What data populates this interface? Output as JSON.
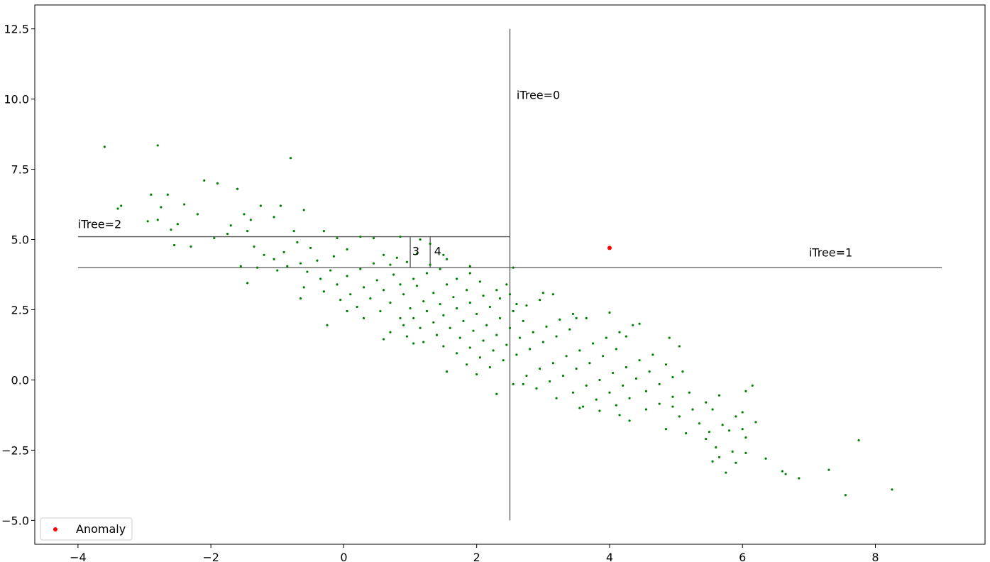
{
  "chart_data": {
    "type": "scatter",
    "title": "",
    "xlabel": "",
    "ylabel": "",
    "xlim": [
      -4.65,
      9.65
    ],
    "ylim": [
      -5.85,
      13.35
    ],
    "xticks": [
      -4,
      -2,
      0,
      2,
      4,
      6,
      8
    ],
    "xtick_labels": [
      "−4",
      "−2",
      "0",
      "2",
      "4",
      "6",
      "8"
    ],
    "yticks": [
      -5.0,
      -2.5,
      0.0,
      2.5,
      5.0,
      7.5,
      10.0,
      12.5
    ],
    "ytick_labels": [
      "−5.0",
      "−2.5",
      "0.0",
      "2.5",
      "5.0",
      "7.5",
      "10.0",
      "12.5"
    ],
    "grid": false,
    "legend": {
      "position": "lower-left",
      "entries": [
        "Anomaly"
      ]
    },
    "series": [
      {
        "color": "#008000",
        "marker_size": "small",
        "description": "normal points (approx. correlated cloud)",
        "points": [
          [
            -3.6,
            8.3
          ],
          [
            -2.8,
            8.35
          ],
          [
            -0.8,
            7.9
          ],
          [
            -3.4,
            6.1
          ],
          [
            -3.35,
            6.2
          ],
          [
            -2.1,
            7.1
          ],
          [
            -1.9,
            7.0
          ],
          [
            -1.6,
            6.8
          ],
          [
            -2.9,
            6.6
          ],
          [
            -2.65,
            6.6
          ],
          [
            -2.4,
            6.25
          ],
          [
            -2.2,
            5.9
          ],
          [
            -2.75,
            6.15
          ],
          [
            -2.8,
            5.7
          ],
          [
            -2.95,
            5.65
          ],
          [
            -2.5,
            5.55
          ],
          [
            -2.6,
            5.35
          ],
          [
            -2.55,
            4.8
          ],
          [
            -2.3,
            4.75
          ],
          [
            -1.95,
            5.05
          ],
          [
            -1.5,
            5.9
          ],
          [
            -1.4,
            5.7
          ],
          [
            -1.25,
            6.2
          ],
          [
            -1.05,
            5.8
          ],
          [
            -0.95,
            6.2
          ],
          [
            -0.6,
            6.05
          ],
          [
            -0.75,
            5.3
          ],
          [
            -1.45,
            5.3
          ],
          [
            -1.7,
            5.5
          ],
          [
            -1.75,
            5.2
          ],
          [
            -1.35,
            4.75
          ],
          [
            -1.2,
            4.45
          ],
          [
            -1.05,
            4.3
          ],
          [
            -0.9,
            4.55
          ],
          [
            -0.7,
            4.9
          ],
          [
            -0.5,
            4.7
          ],
          [
            -0.3,
            5.3
          ],
          [
            -0.1,
            5.05
          ],
          [
            0.05,
            4.65
          ],
          [
            -0.15,
            4.4
          ],
          [
            -0.4,
            4.25
          ],
          [
            -0.65,
            4.15
          ],
          [
            -0.85,
            4.05
          ],
          [
            -1.0,
            3.9
          ],
          [
            -1.3,
            4.0
          ],
          [
            -1.45,
            3.45
          ],
          [
            -1.55,
            4.05
          ],
          [
            -0.55,
            3.85
          ],
          [
            -0.2,
            3.9
          ],
          [
            0.05,
            3.7
          ],
          [
            0.25,
            3.95
          ],
          [
            0.45,
            4.15
          ],
          [
            0.6,
            4.45
          ],
          [
            0.8,
            4.35
          ],
          [
            0.95,
            4.2
          ],
          [
            0.75,
            3.75
          ],
          [
            0.5,
            3.55
          ],
          [
            0.3,
            3.3
          ],
          [
            0.1,
            3.05
          ],
          [
            -0.1,
            3.4
          ],
          [
            -0.35,
            3.6
          ],
          [
            -0.6,
            3.3
          ],
          [
            -0.3,
            3.15
          ],
          [
            -0.05,
            2.85
          ],
          [
            0.2,
            2.6
          ],
          [
            0.4,
            2.9
          ],
          [
            0.6,
            3.2
          ],
          [
            0.85,
            3.4
          ],
          [
            1.05,
            3.6
          ],
          [
            1.25,
            3.8
          ],
          [
            1.45,
            3.95
          ],
          [
            1.55,
            4.3
          ],
          [
            1.3,
            4.1
          ],
          [
            1.1,
            3.35
          ],
          [
            0.9,
            3.05
          ],
          [
            0.7,
            2.75
          ],
          [
            0.55,
            2.45
          ],
          [
            0.3,
            2.2
          ],
          [
            0.05,
            2.45
          ],
          [
            -0.25,
            1.95
          ],
          [
            -0.65,
            2.9
          ],
          [
            0.85,
            2.2
          ],
          [
            1.0,
            2.55
          ],
          [
            1.2,
            2.8
          ],
          [
            1.35,
            3.1
          ],
          [
            1.55,
            3.4
          ],
          [
            1.7,
            3.6
          ],
          [
            1.9,
            3.8
          ],
          [
            2.05,
            3.5
          ],
          [
            1.85,
            3.2
          ],
          [
            1.65,
            2.95
          ],
          [
            1.45,
            2.7
          ],
          [
            1.25,
            2.45
          ],
          [
            1.05,
            2.2
          ],
          [
            0.9,
            1.95
          ],
          [
            0.7,
            1.7
          ],
          [
            0.6,
            1.45
          ],
          [
            0.95,
            1.55
          ],
          [
            1.15,
            1.85
          ],
          [
            1.35,
            2.05
          ],
          [
            1.5,
            2.3
          ],
          [
            1.7,
            2.55
          ],
          [
            1.9,
            2.75
          ],
          [
            2.1,
            3.0
          ],
          [
            2.3,
            3.2
          ],
          [
            2.45,
            3.4
          ],
          [
            2.2,
            2.6
          ],
          [
            2.0,
            2.35
          ],
          [
            1.8,
            2.1
          ],
          [
            1.6,
            1.85
          ],
          [
            1.4,
            1.6
          ],
          [
            1.2,
            1.35
          ],
          [
            1.05,
            1.3
          ],
          [
            1.5,
            1.2
          ],
          [
            1.75,
            1.5
          ],
          [
            1.95,
            1.75
          ],
          [
            2.15,
            1.95
          ],
          [
            2.35,
            2.2
          ],
          [
            2.55,
            2.45
          ],
          [
            2.75,
            2.65
          ],
          [
            2.95,
            2.85
          ],
          [
            3.15,
            3.05
          ],
          [
            2.7,
            2.1
          ],
          [
            2.5,
            1.85
          ],
          [
            2.3,
            1.6
          ],
          [
            2.1,
            1.4
          ],
          [
            1.9,
            1.15
          ],
          [
            1.7,
            0.95
          ],
          [
            1.55,
            0.3
          ],
          [
            1.85,
            0.55
          ],
          [
            2.05,
            0.8
          ],
          [
            2.25,
            1.05
          ],
          [
            2.45,
            1.25
          ],
          [
            2.65,
            1.5
          ],
          [
            2.85,
            1.7
          ],
          [
            3.05,
            1.9
          ],
          [
            3.25,
            2.15
          ],
          [
            3.45,
            2.35
          ],
          [
            3.65,
            2.2
          ],
          [
            3.4,
            1.8
          ],
          [
            3.2,
            1.55
          ],
          [
            3.0,
            1.35
          ],
          [
            2.8,
            1.1
          ],
          [
            2.6,
            0.9
          ],
          [
            2.4,
            0.7
          ],
          [
            2.2,
            0.45
          ],
          [
            2.0,
            0.2
          ],
          [
            2.3,
            -0.5
          ],
          [
            2.55,
            -0.15
          ],
          [
            2.75,
            0.15
          ],
          [
            2.95,
            0.4
          ],
          [
            3.15,
            0.6
          ],
          [
            3.35,
            0.85
          ],
          [
            3.55,
            1.05
          ],
          [
            3.75,
            1.3
          ],
          [
            3.95,
            1.5
          ],
          [
            4.15,
            1.7
          ],
          [
            4.35,
            1.95
          ],
          [
            4.1,
            1.1
          ],
          [
            3.9,
            0.85
          ],
          [
            3.7,
            0.6
          ],
          [
            3.5,
            0.4
          ],
          [
            3.3,
            0.15
          ],
          [
            3.1,
            -0.05
          ],
          [
            2.9,
            -0.3
          ],
          [
            2.7,
            -0.15
          ],
          [
            3.2,
            -0.65
          ],
          [
            3.45,
            -0.45
          ],
          [
            3.65,
            -0.2
          ],
          [
            3.85,
            0.0
          ],
          [
            4.05,
            0.25
          ],
          [
            4.25,
            0.45
          ],
          [
            4.45,
            0.7
          ],
          [
            4.65,
            0.9
          ],
          [
            4.85,
            0.55
          ],
          [
            4.6,
            0.3
          ],
          [
            4.4,
            0.05
          ],
          [
            4.2,
            -0.2
          ],
          [
            4.0,
            -0.45
          ],
          [
            3.8,
            -0.7
          ],
          [
            3.6,
            -0.95
          ],
          [
            3.55,
            -1.0
          ],
          [
            3.85,
            -1.1
          ],
          [
            4.1,
            -0.9
          ],
          [
            4.3,
            -0.65
          ],
          [
            4.55,
            -0.4
          ],
          [
            4.75,
            -0.15
          ],
          [
            4.95,
            0.1
          ],
          [
            5.1,
            0.3
          ],
          [
            5.05,
            1.2
          ],
          [
            4.95,
            -0.6
          ],
          [
            4.75,
            -0.85
          ],
          [
            4.55,
            -1.05
          ],
          [
            4.3,
            -1.45
          ],
          [
            4.15,
            -1.25
          ],
          [
            4.85,
            -1.75
          ],
          [
            5.05,
            -1.3
          ],
          [
            5.25,
            -1.05
          ],
          [
            5.45,
            -0.8
          ],
          [
            5.65,
            -0.55
          ],
          [
            5.35,
            -1.55
          ],
          [
            5.5,
            -1.85
          ],
          [
            5.7,
            -1.6
          ],
          [
            5.9,
            -1.3
          ],
          [
            6.0,
            -1.15
          ],
          [
            6.05,
            -0.4
          ],
          [
            6.15,
            -0.2
          ],
          [
            5.15,
            -1.9
          ],
          [
            5.45,
            -2.1
          ],
          [
            5.8,
            -1.8
          ],
          [
            6.0,
            -1.75
          ],
          [
            6.05,
            -2.05
          ],
          [
            6.2,
            -1.5
          ],
          [
            5.6,
            -2.4
          ],
          [
            5.65,
            -2.75
          ],
          [
            5.75,
            -3.3
          ],
          [
            5.85,
            -2.55
          ],
          [
            5.55,
            -2.9
          ],
          [
            5.9,
            -2.95
          ],
          [
            6.05,
            -2.6
          ],
          [
            6.35,
            -2.8
          ],
          [
            6.6,
            -3.25
          ],
          [
            6.65,
            -3.35
          ],
          [
            6.85,
            -3.5
          ],
          [
            7.3,
            -3.2
          ],
          [
            7.55,
            -4.1
          ],
          [
            7.75,
            -2.15
          ],
          [
            8.25,
            -3.9
          ],
          [
            3.5,
            2.2
          ],
          [
            4.0,
            2.4
          ],
          [
            4.45,
            2.0
          ],
          [
            4.9,
            1.5
          ],
          [
            4.25,
            1.55
          ],
          [
            4.95,
            -0.95
          ],
          [
            5.2,
            -0.45
          ],
          [
            5.55,
            -1.05
          ],
          [
            3.0,
            3.1
          ],
          [
            2.6,
            2.7
          ],
          [
            2.35,
            2.9
          ],
          [
            2.5,
            3.05
          ],
          [
            1.9,
            4.05
          ],
          [
            2.55,
            4.0
          ],
          [
            0.25,
            5.1
          ],
          [
            0.45,
            5.05
          ],
          [
            0.85,
            5.1
          ],
          [
            1.15,
            5.0
          ],
          [
            1.3,
            4.85
          ],
          [
            1.5,
            4.45
          ],
          [
            0.7,
            4.1
          ],
          [
            1.1,
            4.5
          ]
        ]
      },
      {
        "name": "Anomaly",
        "color": "#ff0000",
        "marker_size": "medium",
        "points": [
          [
            4.0,
            4.7
          ]
        ]
      }
    ],
    "split_lines": [
      {
        "orientation": "vertical",
        "x": 2.5,
        "y_range": [
          -5.0,
          12.5
        ]
      },
      {
        "orientation": "horizontal",
        "y": 4.0,
        "x_range": [
          -4.0,
          9.0
        ]
      },
      {
        "orientation": "horizontal",
        "y": 5.1,
        "x_range": [
          -4.0,
          2.5
        ]
      },
      {
        "orientation": "vertical",
        "x": 1.0,
        "y_range": [
          4.0,
          5.1
        ]
      },
      {
        "orientation": "vertical",
        "x": 1.3,
        "y_range": [
          4.0,
          5.1
        ]
      }
    ],
    "annotations": [
      {
        "text": "iTree=0",
        "x": 2.6,
        "y": 10.0
      },
      {
        "text": "iTree=1",
        "x": 7.0,
        "y": 4.4
      },
      {
        "text": "iTree=2",
        "x": -4.0,
        "y": 5.4
      },
      {
        "text": "3",
        "x": 1.03,
        "y": 4.45
      },
      {
        "text": "4",
        "x": 1.36,
        "y": 4.45
      }
    ]
  }
}
